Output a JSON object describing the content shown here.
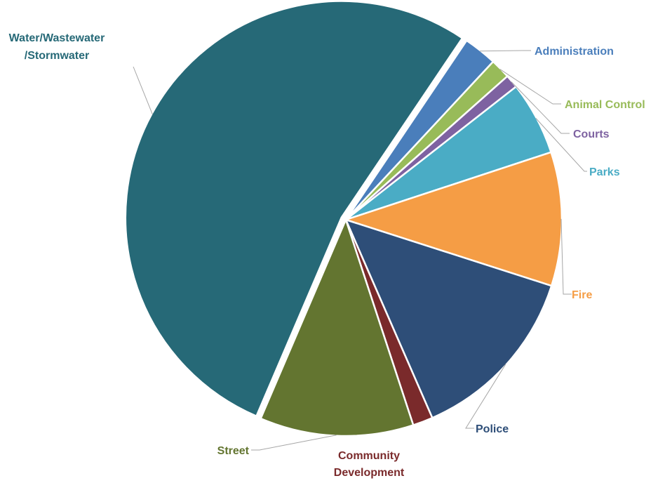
{
  "chart_data": {
    "type": "pie",
    "title": "",
    "legend": "none",
    "slices": [
      {
        "label": "Administration",
        "value": 2.5,
        "color": "#4a7ebb",
        "lines": [
          "Administration"
        ]
      },
      {
        "label": "Animal Control",
        "value": 1.5,
        "color": "#98bb59",
        "lines": [
          "Animal Control"
        ]
      },
      {
        "label": "Courts",
        "value": 1.0,
        "color": "#7e62a1",
        "lines": [
          "Courts"
        ]
      },
      {
        "label": "Parks",
        "value": 5.5,
        "color": "#4aacc5",
        "lines": [
          "Parks"
        ]
      },
      {
        "label": "Fire",
        "value": 10.0,
        "color": "#f59d45",
        "lines": [
          "Fire"
        ]
      },
      {
        "label": "Police",
        "value": 13.5,
        "color": "#2e4e78",
        "lines": [
          "Police"
        ]
      },
      {
        "label": "Community Development",
        "value": 1.5,
        "color": "#7a2a2b",
        "lines": [
          "Community",
          "Development"
        ]
      },
      {
        "label": "Street",
        "value": 11.5,
        "color": "#637530",
        "lines": [
          "Street"
        ]
      },
      {
        "label": "Water/Wastewater/Stormwater",
        "value": 53.0,
        "color": "#266977",
        "lines": [
          "Water/Wastewater",
          "/Stormwater"
        ]
      }
    ]
  }
}
